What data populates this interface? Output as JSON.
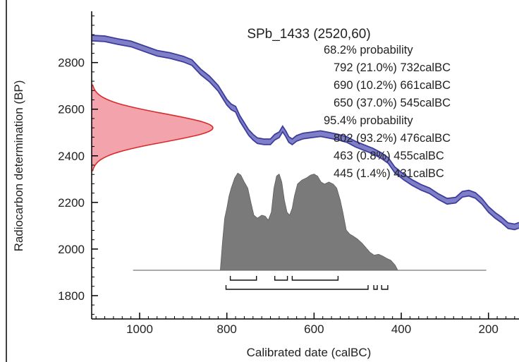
{
  "chart_data": {
    "type": "line",
    "title": "SPb_1433 (2520,60)",
    "xlabel": "Calibrated date (calBC)",
    "ylabel": "Radiocarbon determination (BP)",
    "xlim": [
      1110,
      130
    ],
    "ylim": [
      1700,
      3020
    ],
    "x_ticks": [
      1000,
      800,
      600,
      400,
      200
    ],
    "y_ticks": [
      1800,
      2000,
      2200,
      2400,
      2600,
      2800
    ],
    "probability_blocks": [
      {
        "header": "68.2% probability",
        "ranges": [
          "792 (21.0%) 732calBC",
          "690 (10.2%) 661calBC",
          "650 (37.0%) 545calBC"
        ]
      },
      {
        "header": "95.4% probability",
        "ranges": [
          "802 (93.2%) 476calBC",
          "463 (0.8%) 455calBC",
          "445 (1.4%) 431calBC"
        ]
      }
    ],
    "calibration_curve": {
      "color": "#3d3d9e",
      "fill": "#7f7fc8",
      "band_bp": 12,
      "points": [
        [
          1110,
          2905
        ],
        [
          1080,
          2902
        ],
        [
          1050,
          2890
        ],
        [
          1020,
          2880
        ],
        [
          990,
          2860
        ],
        [
          960,
          2840
        ],
        [
          930,
          2830
        ],
        [
          900,
          2815
        ],
        [
          880,
          2800
        ],
        [
          860,
          2760
        ],
        [
          840,
          2730
        ],
        [
          820,
          2690
        ],
        [
          800,
          2630
        ],
        [
          790,
          2610
        ],
        [
          780,
          2600
        ],
        [
          770,
          2560
        ],
        [
          760,
          2530
        ],
        [
          750,
          2500
        ],
        [
          740,
          2480
        ],
        [
          730,
          2465
        ],
        [
          715,
          2460
        ],
        [
          700,
          2460
        ],
        [
          690,
          2480
        ],
        [
          680,
          2490
        ],
        [
          672,
          2515
        ],
        [
          665,
          2495
        ],
        [
          658,
          2470
        ],
        [
          650,
          2460
        ],
        [
          640,
          2475
        ],
        [
          625,
          2485
        ],
        [
          605,
          2490
        ],
        [
          585,
          2495
        ],
        [
          565,
          2488
        ],
        [
          545,
          2480
        ],
        [
          525,
          2470
        ],
        [
          505,
          2450
        ],
        [
          485,
          2435
        ],
        [
          465,
          2420
        ],
        [
          445,
          2400
        ],
        [
          430,
          2380
        ],
        [
          415,
          2340
        ],
        [
          395,
          2310
        ],
        [
          375,
          2285
        ],
        [
          355,
          2265
        ],
        [
          335,
          2250
        ],
        [
          315,
          2225
        ],
        [
          295,
          2205
        ],
        [
          275,
          2210
        ],
        [
          260,
          2235
        ],
        [
          245,
          2240
        ],
        [
          230,
          2230
        ],
        [
          215,
          2205
        ],
        [
          200,
          2170
        ],
        [
          185,
          2145
        ],
        [
          170,
          2125
        ],
        [
          155,
          2100
        ],
        [
          140,
          2095
        ],
        [
          130,
          2102
        ]
      ]
    },
    "radiocarbon_distribution": {
      "mean_bp": 2520,
      "error": 60,
      "color": "#d92b2b",
      "fill": "#f2a3ab"
    },
    "calibrated_distribution": {
      "color": "#7a7a7a",
      "baseline_x": [
        1015,
        205
      ],
      "points": [
        [
          815,
          0.0
        ],
        [
          810,
          0.28
        ],
        [
          805,
          0.52
        ],
        [
          800,
          0.62
        ],
        [
          795,
          0.74
        ],
        [
          790,
          0.82
        ],
        [
          782,
          0.92
        ],
        [
          775,
          0.97
        ],
        [
          768,
          0.95
        ],
        [
          760,
          0.88
        ],
        [
          752,
          0.82
        ],
        [
          745,
          0.68
        ],
        [
          738,
          0.55
        ],
        [
          730,
          0.52
        ],
        [
          720,
          0.55
        ],
        [
          712,
          0.54
        ],
        [
          705,
          0.5
        ],
        [
          698,
          0.58
        ],
        [
          692,
          0.82
        ],
        [
          686,
          0.94
        ],
        [
          680,
          0.96
        ],
        [
          674,
          0.88
        ],
        [
          668,
          0.7
        ],
        [
          662,
          0.58
        ],
        [
          656,
          0.55
        ],
        [
          650,
          0.62
        ],
        [
          645,
          0.74
        ],
        [
          638,
          0.86
        ],
        [
          628,
          0.9
        ],
        [
          618,
          0.92
        ],
        [
          608,
          0.95
        ],
        [
          600,
          0.96
        ],
        [
          592,
          0.94
        ],
        [
          584,
          0.88
        ],
        [
          576,
          0.86
        ],
        [
          566,
          0.88
        ],
        [
          556,
          0.86
        ],
        [
          548,
          0.82
        ],
        [
          540,
          0.7
        ],
        [
          534,
          0.58
        ],
        [
          526,
          0.4
        ],
        [
          518,
          0.36
        ],
        [
          510,
          0.34
        ],
        [
          500,
          0.31
        ],
        [
          490,
          0.27
        ],
        [
          480,
          0.22
        ],
        [
          472,
          0.18
        ],
        [
          462,
          0.15
        ],
        [
          452,
          0.16
        ],
        [
          442,
          0.14
        ],
        [
          434,
          0.12
        ],
        [
          424,
          0.1
        ],
        [
          414,
          0.05
        ],
        [
          408,
          0.0
        ]
      ]
    },
    "range_brackets_68": [
      [
        792,
        732
      ],
      [
        690,
        661
      ],
      [
        650,
        545
      ]
    ],
    "range_brackets_95": [
      [
        802,
        476
      ],
      [
        463,
        455
      ],
      [
        445,
        431
      ]
    ]
  }
}
